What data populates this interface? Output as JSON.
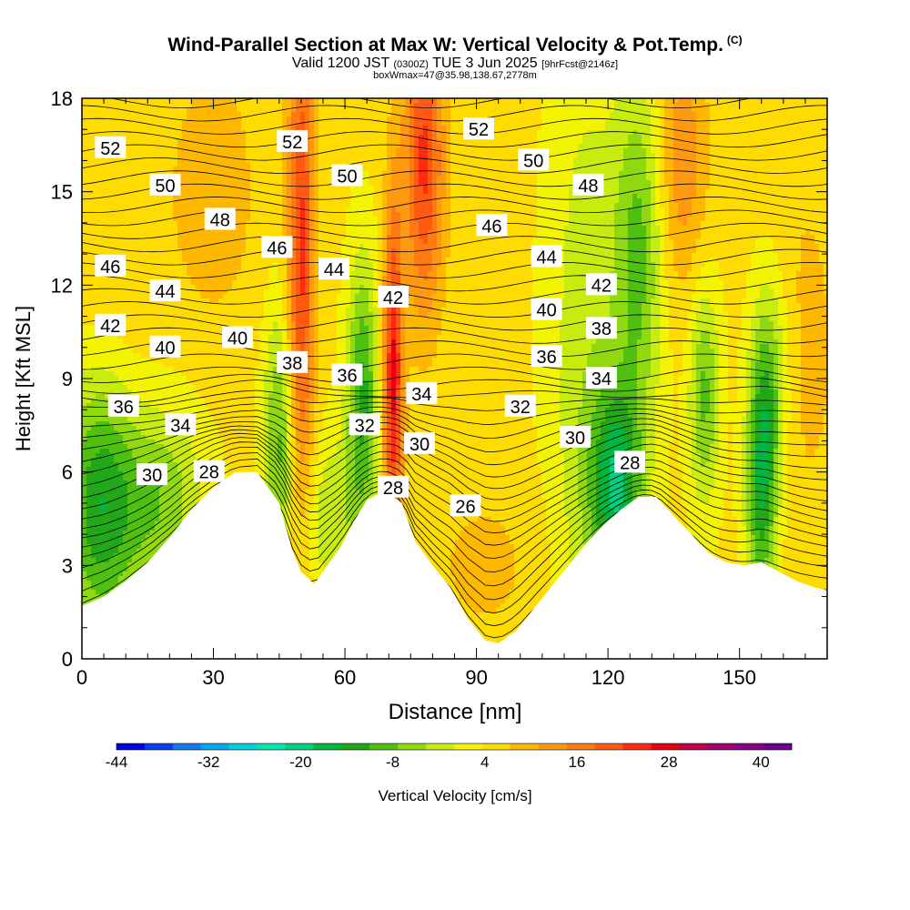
{
  "header": {
    "title": "Wind-Parallel Section at Max W: Vertical Velocity & Pot.Temp.",
    "copyright": "(C)",
    "valid_main": "Valid 1200 JST",
    "valid_utc": "(0300Z)",
    "valid_date": "TUE 3 Jun 2025",
    "forecast": "[9hrFcst@2146z]",
    "boxwmax": "boxWmax=47@35.98,138.67,2778m"
  },
  "chart_data": {
    "type": "heatmap",
    "xlabel": "Distance [nm]",
    "ylabel": "Height [Kft MSL]",
    "xlim": [
      0,
      170
    ],
    "ylim": [
      0,
      18
    ],
    "x_ticks": [
      0,
      30,
      60,
      90,
      120,
      150
    ],
    "y_ticks": [
      0,
      3,
      6,
      9,
      12,
      15,
      18
    ],
    "colorbar": {
      "label": "Vertical Velocity [cm/s]",
      "min": -44,
      "max": 44,
      "step": 4,
      "tick_labels": [
        "-44",
        "-32",
        "-20",
        "-8",
        "4",
        "16",
        "28",
        "40"
      ],
      "colors": [
        "#0000e0",
        "#0a3cf0",
        "#1478f0",
        "#00a8f0",
        "#00d0e0",
        "#00e8b0",
        "#00d080",
        "#00b840",
        "#20a818",
        "#50c010",
        "#90d810",
        "#c8ec10",
        "#f4f400",
        "#ffdc00",
        "#ffb800",
        "#ff9a10",
        "#ff7a10",
        "#ff5a10",
        "#ff2a10",
        "#e80010",
        "#c0004a",
        "#a00070",
        "#880088",
        "#6a0090"
      ]
    },
    "theta_contour_labels": [
      {
        "text": "52",
        "x": 6.5,
        "y": 16.4
      },
      {
        "text": "50",
        "x": 19,
        "y": 15.2
      },
      {
        "text": "48",
        "x": 31.5,
        "y": 14.1
      },
      {
        "text": "46",
        "x": 6.5,
        "y": 12.6
      },
      {
        "text": "44",
        "x": 19,
        "y": 11.8
      },
      {
        "text": "46",
        "x": 44.5,
        "y": 13.2
      },
      {
        "text": "52",
        "x": 48,
        "y": 16.6
      },
      {
        "text": "50",
        "x": 60.5,
        "y": 15.5
      },
      {
        "text": "44",
        "x": 57.5,
        "y": 12.5
      },
      {
        "text": "42",
        "x": 6.5,
        "y": 10.7
      },
      {
        "text": "40",
        "x": 19,
        "y": 10.0
      },
      {
        "text": "40",
        "x": 35.5,
        "y": 10.3
      },
      {
        "text": "38",
        "x": 48,
        "y": 9.5
      },
      {
        "text": "36",
        "x": 60.5,
        "y": 9.1
      },
      {
        "text": "42",
        "x": 71,
        "y": 11.6
      },
      {
        "text": "34",
        "x": 77.5,
        "y": 8.5
      },
      {
        "text": "32",
        "x": 64.5,
        "y": 7.5
      },
      {
        "text": "30",
        "x": 77,
        "y": 6.9
      },
      {
        "text": "28",
        "x": 71,
        "y": 5.5
      },
      {
        "text": "36",
        "x": 9.5,
        "y": 8.1
      },
      {
        "text": "34",
        "x": 22.5,
        "y": 7.5
      },
      {
        "text": "30",
        "x": 16,
        "y": 5.9
      },
      {
        "text": "28",
        "x": 29,
        "y": 6.0
      },
      {
        "text": "52",
        "x": 90.5,
        "y": 17.0
      },
      {
        "text": "50",
        "x": 103,
        "y": 16.0
      },
      {
        "text": "48",
        "x": 115.5,
        "y": 15.2
      },
      {
        "text": "46",
        "x": 93.5,
        "y": 13.9
      },
      {
        "text": "44",
        "x": 106,
        "y": 12.9
      },
      {
        "text": "42",
        "x": 118.5,
        "y": 12.0
      },
      {
        "text": "40",
        "x": 106,
        "y": 11.2
      },
      {
        "text": "38",
        "x": 118.5,
        "y": 10.6
      },
      {
        "text": "36",
        "x": 106,
        "y": 9.7
      },
      {
        "text": "34",
        "x": 118.5,
        "y": 9.0
      },
      {
        "text": "32",
        "x": 100,
        "y": 8.1
      },
      {
        "text": "30",
        "x": 112.5,
        "y": 7.1
      },
      {
        "text": "28",
        "x": 125,
        "y": 6.3
      },
      {
        "text": "26",
        "x": 87.5,
        "y": 4.9
      }
    ],
    "terrain_height": [
      {
        "x": 0,
        "y": 1.7
      },
      {
        "x": 5,
        "y": 2.0
      },
      {
        "x": 10,
        "y": 2.5
      },
      {
        "x": 15,
        "y": 3.1
      },
      {
        "x": 20,
        "y": 3.9
      },
      {
        "x": 25,
        "y": 4.8
      },
      {
        "x": 30,
        "y": 5.5
      },
      {
        "x": 35,
        "y": 6.0
      },
      {
        "x": 40,
        "y": 6.0
      },
      {
        "x": 45,
        "y": 5.0
      },
      {
        "x": 48,
        "y": 3.5
      },
      {
        "x": 50,
        "y": 2.8
      },
      {
        "x": 53,
        "y": 2.4
      },
      {
        "x": 56,
        "y": 3.0
      },
      {
        "x": 59,
        "y": 3.6
      },
      {
        "x": 62,
        "y": 4.4
      },
      {
        "x": 65,
        "y": 5.1
      },
      {
        "x": 69,
        "y": 5.4
      },
      {
        "x": 73,
        "y": 5.0
      },
      {
        "x": 76,
        "y": 3.8
      },
      {
        "x": 80,
        "y": 3.0
      },
      {
        "x": 84,
        "y": 2.3
      },
      {
        "x": 88,
        "y": 1.3
      },
      {
        "x": 92,
        "y": 0.6
      },
      {
        "x": 95,
        "y": 0.5
      },
      {
        "x": 99,
        "y": 0.9
      },
      {
        "x": 103,
        "y": 1.6
      },
      {
        "x": 107,
        "y": 2.3
      },
      {
        "x": 111,
        "y": 3.0
      },
      {
        "x": 115,
        "y": 3.7
      },
      {
        "x": 119,
        "y": 4.3
      },
      {
        "x": 123,
        "y": 4.8
      },
      {
        "x": 127,
        "y": 5.2
      },
      {
        "x": 131,
        "y": 5.2
      },
      {
        "x": 135,
        "y": 4.6
      },
      {
        "x": 139,
        "y": 4.0
      },
      {
        "x": 143,
        "y": 3.4
      },
      {
        "x": 147,
        "y": 3.1
      },
      {
        "x": 151,
        "y": 3.0
      },
      {
        "x": 155,
        "y": 3.1
      },
      {
        "x": 159,
        "y": 2.8
      },
      {
        "x": 163,
        "y": 2.5
      },
      {
        "x": 167,
        "y": 2.3
      },
      {
        "x": 170,
        "y": 2.2
      }
    ]
  }
}
